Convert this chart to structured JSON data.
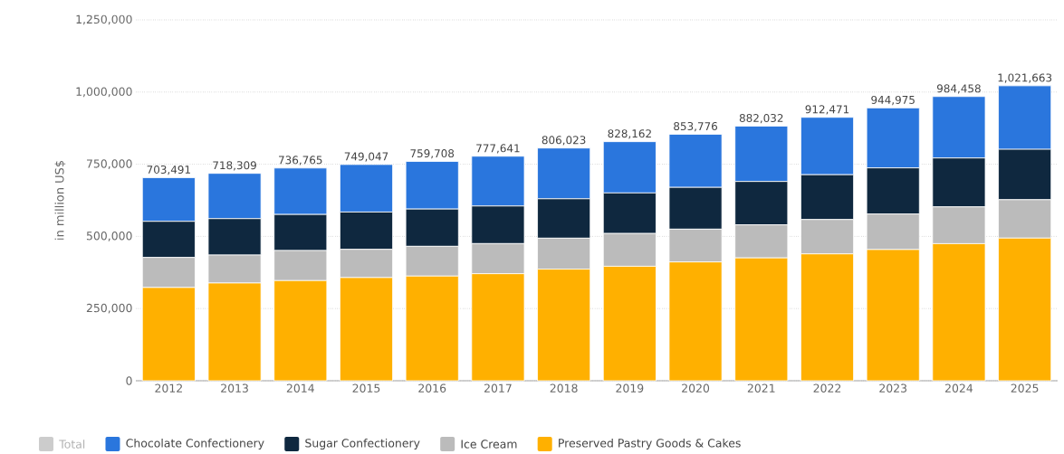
{
  "chart_data": {
    "type": "bar",
    "stacked": true,
    "ylabel": "in million US$",
    "categories": [
      "2012",
      "2013",
      "2014",
      "2015",
      "2016",
      "2017",
      "2018",
      "2019",
      "2020",
      "2021",
      "2022",
      "2023",
      "2024",
      "2025"
    ],
    "series": [
      {
        "name": "Preserved Pastry Goods & Cakes",
        "color": "#ffb000",
        "values": [
          322900,
          338500,
          346900,
          357300,
          362500,
          370800,
          386500,
          396500,
          411500,
          425500,
          439400,
          454400,
          474800,
          494100
        ]
      },
      {
        "name": "Ice Cream",
        "color": "#bbbbbb",
        "values": [
          104200,
          96900,
          104100,
          97900,
          103100,
          104200,
          107300,
          113600,
          113600,
          114600,
          119000,
          123200,
          127500,
          132900
        ]
      },
      {
        "name": "Sugar Confectionery",
        "color": "#0f283f",
        "values": [
          125000,
          126100,
          125000,
          129200,
          129200,
          130200,
          136400,
          140400,
          144700,
          150100,
          155300,
          159700,
          169300,
          174600
        ]
      },
      {
        "name": "Chocolate Confectionery",
        "color": "#2a76dd",
        "values": [
          151391,
          156809,
          160765,
          164647,
          164908,
          172441,
          175823,
          177662,
          183976,
          191832,
          198771,
          207675,
          212858,
          220063
        ]
      },
      {
        "name": "Total",
        "color": "#cccccc",
        "values": [
          null,
          null,
          null,
          null,
          null,
          null,
          null,
          null,
          null,
          null,
          null,
          null,
          null,
          null
        ]
      }
    ],
    "totals": [
      "703,491",
      "718,309",
      "736,765",
      "749,047",
      "759,708",
      "777,641",
      "806,023",
      "828,162",
      "853,776",
      "882,032",
      "912,471",
      "944,975",
      "984,458",
      "1,021,663"
    ],
    "ylim": [
      0,
      1250000
    ],
    "yticks": [
      0,
      {
        "value": 250000,
        "label": "250,000"
      },
      {
        "value": 500000,
        "label": "500,000"
      },
      {
        "value": 750000,
        "label": "750,000"
      },
      {
        "value": 1000000,
        "label": "1,000,000"
      },
      {
        "value": 1250000,
        "label": "1,250,000"
      }
    ],
    "grid": "y",
    "legend": "bottom"
  }
}
